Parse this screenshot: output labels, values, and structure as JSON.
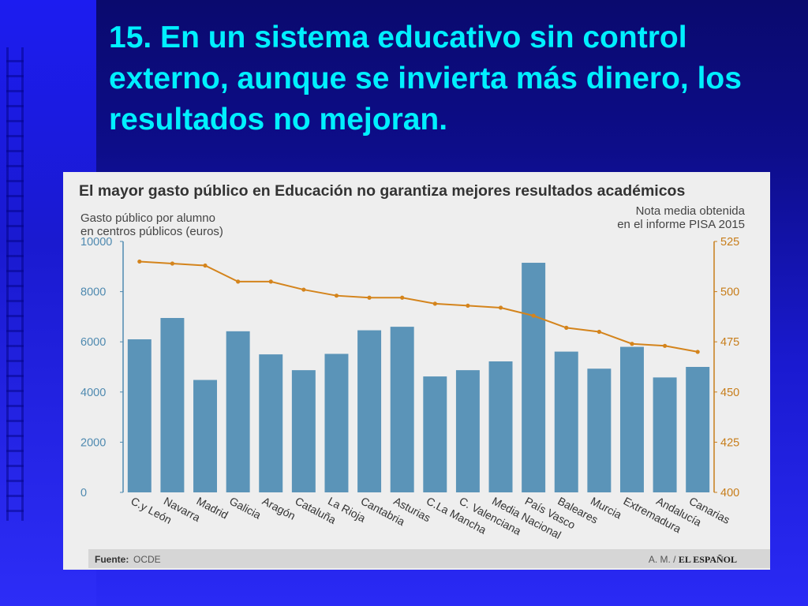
{
  "slide": {
    "title": "15. En un sistema educativo sin control externo, aunque se invierta más dinero, los resultados no mejoran."
  },
  "colors": {
    "bar": "#5b94b8",
    "line": "#d4841c",
    "left_axis": "#4f8ab0",
    "right_axis": "#c77d1a",
    "title_color": "#00f0ff"
  },
  "chart_data": {
    "type": "bar",
    "title": "El mayor gasto público en Educación no garantiza mejores resultados académicos",
    "ylabel": "Gasto público por alumno en centros públicos (euros)",
    "ylabel_lines": [
      "Gasto público por alumno",
      "en centros públicos (euros)"
    ],
    "y2label": "Nota media obtenida en el informe PISA 2015",
    "y2label_lines": [
      "Nota media obtenida",
      "en el informe PISA 2015"
    ],
    "ylim": [
      0,
      10000
    ],
    "y2lim": [
      400,
      525
    ],
    "yticks": [
      0,
      2000,
      4000,
      6000,
      8000,
      10000
    ],
    "y2ticks": [
      400,
      425,
      450,
      475,
      500,
      525
    ],
    "grid": false,
    "categories": [
      "C.y León",
      "Navarra",
      "Madrid",
      "Galicia",
      "Aragón",
      "Cataluña",
      "La Rioja",
      "Cantabria",
      "Asturias",
      "C.La Mancha",
      "C. Valenciana",
      "Media Nacional",
      "País Vasco",
      "Baleares",
      "Murcia",
      "Extremadura",
      "Andalucía",
      "Canarias"
    ],
    "series": [
      {
        "kind": "bar",
        "axis": "left",
        "values": [
          6100,
          6950,
          4480,
          6420,
          5500,
          4870,
          5520,
          6460,
          6600,
          4620,
          4870,
          5220,
          9150,
          5610,
          4930,
          5800,
          4580,
          5000
        ]
      },
      {
        "kind": "line",
        "axis": "right",
        "values": [
          515,
          514,
          513,
          505,
          505,
          501,
          498,
          497,
          497,
          494,
          493,
          492,
          488,
          482,
          480,
          474,
          473,
          470
        ]
      }
    ],
    "source_label": "Fuente:",
    "source_value": "OCDE",
    "credit": "A. M. /",
    "credit_brand": "EL ESPAÑOL"
  }
}
